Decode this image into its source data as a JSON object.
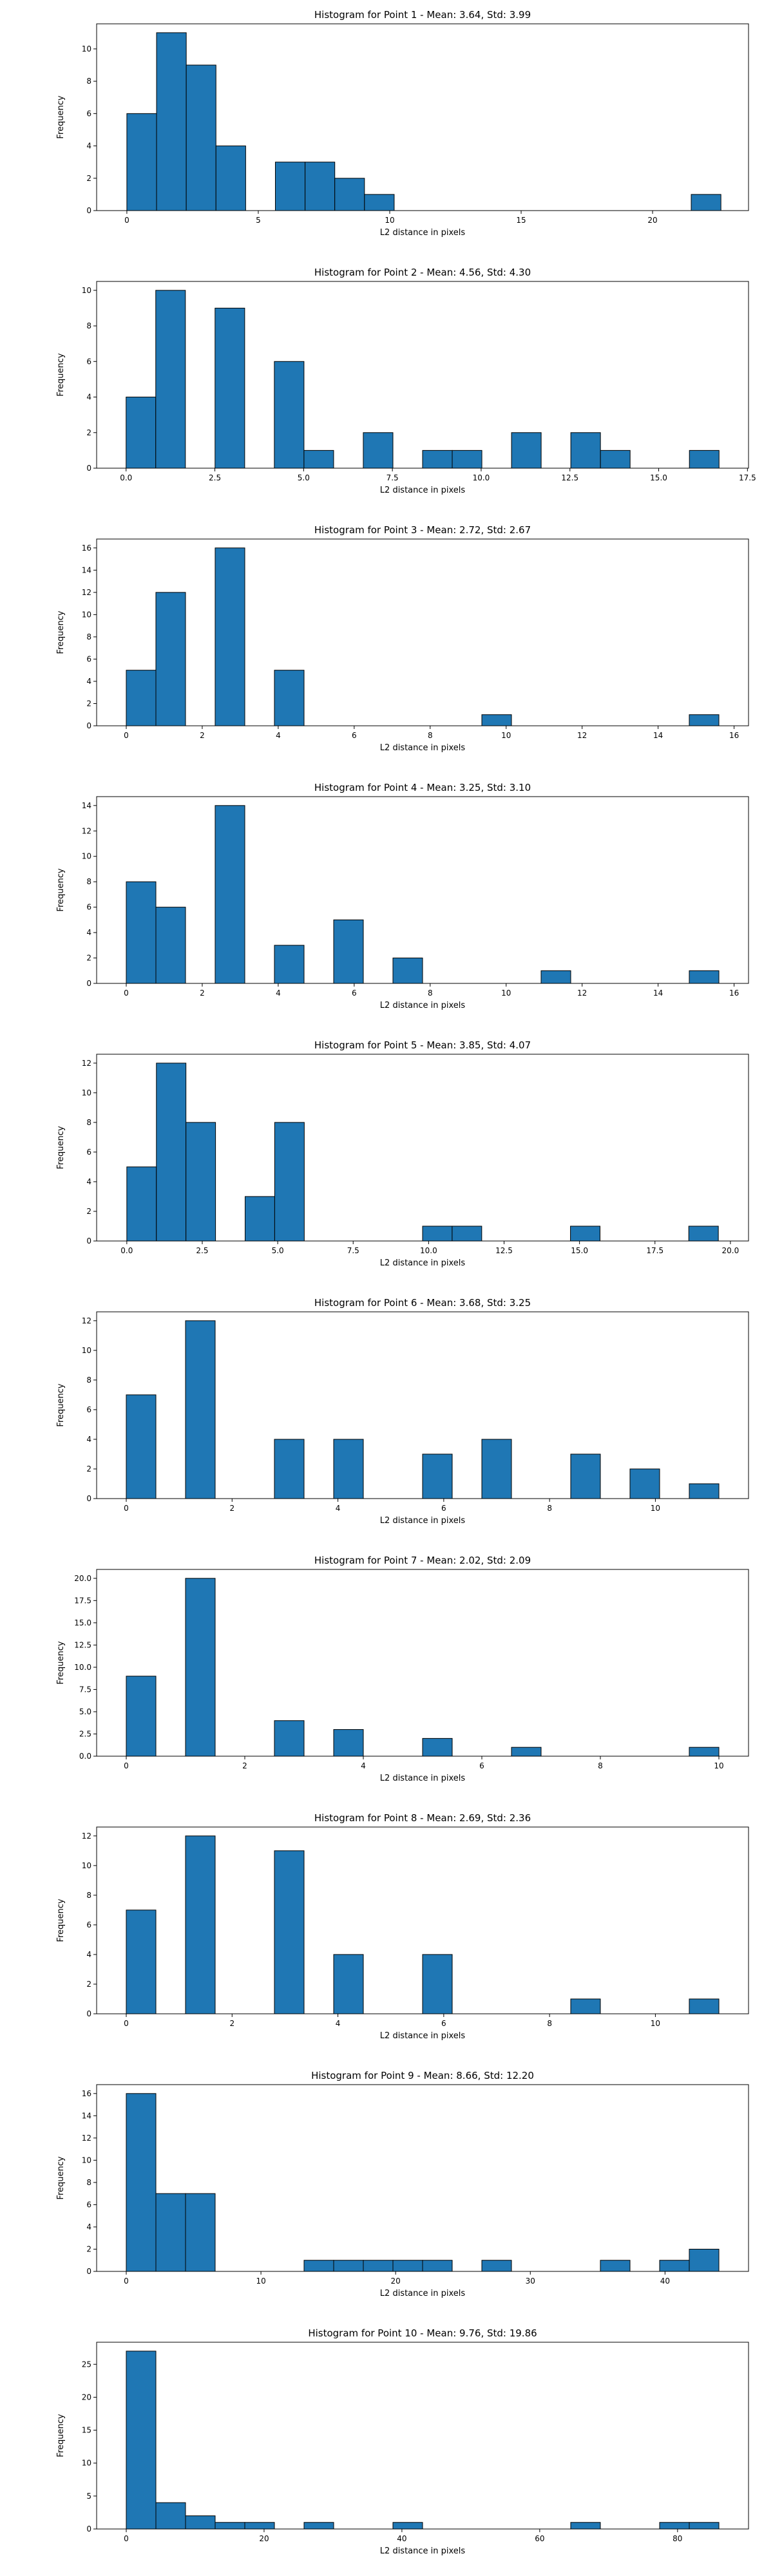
{
  "chart_data": [
    {
      "type": "bar",
      "title": "Histogram for Point 1 - Mean: 3.64, Std: 3.99",
      "xlabel": "L2 distance in pixels",
      "ylabel": "Frequency",
      "xlim": [
        -1.15,
        23.65
      ],
      "ylim": [
        0,
        11.55
      ],
      "xticks": [
        0,
        5,
        10,
        15,
        20
      ],
      "xtick_labels": [
        "0",
        "5",
        "10",
        "15",
        "20"
      ],
      "yticks": [
        0,
        2,
        4,
        6,
        8,
        10
      ],
      "bin_edges": [
        0.0,
        1.13,
        2.26,
        3.39,
        4.52,
        5.65,
        6.78,
        7.91,
        9.04,
        10.17,
        11.3,
        12.43,
        13.56,
        14.69,
        15.82,
        16.95,
        18.08,
        19.21,
        20.34,
        21.47,
        22.6
      ],
      "values": [
        6,
        11,
        9,
        4,
        0,
        3,
        3,
        2,
        1,
        0,
        0,
        0,
        0,
        0,
        0,
        0,
        0,
        0,
        0,
        1
      ]
    },
    {
      "type": "bar",
      "title": "Histogram for Point 2 - Mean: 4.56, Std: 4.30",
      "xlabel": "L2 distance in pixels",
      "ylabel": "Frequency",
      "xlim": [
        -0.83,
        17.53
      ],
      "ylim": [
        0,
        10.5
      ],
      "xticks": [
        0,
        2.5,
        5,
        7.5,
        10,
        12.5,
        15,
        17.5
      ],
      "xtick_labels": [
        "0.0",
        "2.5",
        "5.0",
        "7.5",
        "10.0",
        "12.5",
        "15.0",
        "17.5"
      ],
      "yticks": [
        0,
        2,
        4,
        6,
        8,
        10
      ],
      "bin_edges": [
        0.0,
        0.835,
        1.67,
        2.505,
        3.34,
        4.175,
        5.01,
        5.845,
        6.68,
        7.515,
        8.35,
        9.185,
        10.02,
        10.855,
        11.69,
        12.525,
        13.36,
        14.195,
        15.03,
        15.865,
        16.7
      ],
      "values": [
        4,
        10,
        0,
        9,
        0,
        6,
        1,
        0,
        2,
        0,
        1,
        1,
        0,
        2,
        0,
        2,
        1,
        0,
        0,
        1
      ]
    },
    {
      "type": "bar",
      "title": "Histogram for Point 3 - Mean: 2.72, Std: 2.67",
      "xlabel": "L2 distance in pixels",
      "ylabel": "Frequency",
      "xlim": [
        -0.78,
        16.38
      ],
      "ylim": [
        0,
        16.8
      ],
      "xticks": [
        0,
        2,
        4,
        6,
        8,
        10,
        12,
        14,
        16
      ],
      "xtick_labels": [
        "0",
        "2",
        "4",
        "6",
        "8",
        "10",
        "12",
        "14",
        "16"
      ],
      "yticks": [
        0,
        2,
        4,
        6,
        8,
        10,
        12,
        14,
        16
      ],
      "bin_edges": [
        0.0,
        0.78,
        1.56,
        2.34,
        3.12,
        3.9,
        4.68,
        5.46,
        6.24,
        7.02,
        7.8,
        8.58,
        9.36,
        10.14,
        10.92,
        11.7,
        12.48,
        13.26,
        14.04,
        14.82,
        15.6
      ],
      "values": [
        5,
        12,
        0,
        16,
        0,
        5,
        0,
        0,
        0,
        0,
        0,
        0,
        1,
        0,
        0,
        0,
        0,
        0,
        0,
        1
      ]
    },
    {
      "type": "bar",
      "title": "Histogram for Point 4 - Mean: 3.25, Std: 3.10",
      "xlabel": "L2 distance in pixels",
      "ylabel": "Frequency",
      "xlim": [
        -0.78,
        16.38
      ],
      "ylim": [
        0,
        14.7
      ],
      "xticks": [
        0,
        2,
        4,
        6,
        8,
        10,
        12,
        14,
        16
      ],
      "xtick_labels": [
        "0",
        "2",
        "4",
        "6",
        "8",
        "10",
        "12",
        "14",
        "16"
      ],
      "yticks": [
        0,
        2,
        4,
        6,
        8,
        10,
        12,
        14
      ],
      "bin_edges": [
        0.0,
        0.78,
        1.56,
        2.34,
        3.12,
        3.9,
        4.68,
        5.46,
        6.24,
        7.02,
        7.8,
        8.58,
        9.36,
        10.14,
        10.92,
        11.7,
        12.48,
        13.26,
        14.04,
        14.82,
        15.6
      ],
      "values": [
        8,
        6,
        0,
        14,
        0,
        3,
        0,
        5,
        0,
        2,
        0,
        0,
        0,
        0,
        1,
        0,
        0,
        0,
        0,
        1
      ]
    },
    {
      "type": "bar",
      "title": "Histogram for Point 5 - Mean: 3.85, Std: 4.07",
      "xlabel": "L2 distance in pixels",
      "ylabel": "Frequency",
      "xlim": [
        -1.0,
        20.6
      ],
      "ylim": [
        0,
        12.6
      ],
      "xticks": [
        0,
        2.5,
        5,
        7.5,
        10,
        12.5,
        15,
        17.5,
        20
      ],
      "xtick_labels": [
        "0.0",
        "2.5",
        "5.0",
        "7.5",
        "10.0",
        "12.5",
        "15.0",
        "17.5",
        "20.0"
      ],
      "yticks": [
        0,
        2,
        4,
        6,
        8,
        10,
        12
      ],
      "bin_edges": [
        0.0,
        0.98,
        1.96,
        2.94,
        3.92,
        4.9,
        5.88,
        6.86,
        7.84,
        8.82,
        9.8,
        10.78,
        11.76,
        12.74,
        13.72,
        14.7,
        15.68,
        16.66,
        17.64,
        18.62,
        19.6
      ],
      "values": [
        5,
        12,
        8,
        0,
        3,
        8,
        0,
        0,
        0,
        0,
        1,
        1,
        0,
        0,
        0,
        1,
        0,
        0,
        0,
        1
      ]
    },
    {
      "type": "bar",
      "title": "Histogram for Point 6 - Mean: 3.68, Std: 3.25",
      "xlabel": "L2 distance in pixels",
      "ylabel": "Frequency",
      "xlim": [
        -0.56,
        11.76
      ],
      "ylim": [
        0,
        12.6
      ],
      "xticks": [
        0,
        2,
        4,
        6,
        8,
        10
      ],
      "xtick_labels": [
        "0",
        "2",
        "4",
        "6",
        "8",
        "10"
      ],
      "yticks": [
        0,
        2,
        4,
        6,
        8,
        10,
        12
      ],
      "bin_edges": [
        0.0,
        0.56,
        1.12,
        1.68,
        2.24,
        2.8,
        3.36,
        3.92,
        4.48,
        5.04,
        5.6,
        6.16,
        6.72,
        7.28,
        7.84,
        8.4,
        8.96,
        9.52,
        10.08,
        10.64,
        11.2
      ],
      "values": [
        7,
        0,
        12,
        0,
        0,
        4,
        0,
        4,
        0,
        0,
        3,
        0,
        4,
        0,
        0,
        3,
        0,
        2,
        0,
        1
      ]
    },
    {
      "type": "bar",
      "title": "Histogram for Point 7 - Mean: 2.02, Std: 2.09",
      "xlabel": "L2 distance in pixels",
      "ylabel": "Frequency",
      "xlim": [
        -0.5,
        10.5
      ],
      "ylim": [
        0,
        21.0
      ],
      "xticks": [
        0,
        2,
        4,
        6,
        8,
        10
      ],
      "xtick_labels": [
        "0",
        "2",
        "4",
        "6",
        "8",
        "10"
      ],
      "yticks": [
        0,
        2.5,
        5,
        7.5,
        10,
        12.5,
        15,
        17.5,
        20
      ],
      "ytick_labels": [
        "0.0",
        "2.5",
        "5.0",
        "7.5",
        "10.0",
        "12.5",
        "15.0",
        "17.5",
        "20.0"
      ],
      "bin_edges": [
        0.0,
        0.5,
        1.0,
        1.5,
        2.0,
        2.5,
        3.0,
        3.5,
        4.0,
        4.5,
        5.0,
        5.5,
        6.0,
        6.5,
        7.0,
        7.5,
        8.0,
        8.5,
        9.0,
        9.5,
        10.0
      ],
      "values": [
        9,
        0,
        20,
        0,
        0,
        4,
        0,
        3,
        0,
        0,
        2,
        0,
        0,
        1,
        0,
        0,
        0,
        0,
        0,
        1
      ]
    },
    {
      "type": "bar",
      "title": "Histogram for Point 8 - Mean: 2.69, Std: 2.36",
      "xlabel": "L2 distance in pixels",
      "ylabel": "Frequency",
      "xlim": [
        -0.56,
        11.76
      ],
      "ylim": [
        0,
        12.6
      ],
      "xticks": [
        0,
        2,
        4,
        6,
        8,
        10
      ],
      "xtick_labels": [
        "0",
        "2",
        "4",
        "6",
        "8",
        "10"
      ],
      "yticks": [
        0,
        2,
        4,
        6,
        8,
        10,
        12
      ],
      "bin_edges": [
        0.0,
        0.56,
        1.12,
        1.68,
        2.24,
        2.8,
        3.36,
        3.92,
        4.48,
        5.04,
        5.6,
        6.16,
        6.72,
        7.28,
        7.84,
        8.4,
        8.96,
        9.52,
        10.08,
        10.64,
        11.2
      ],
      "values": [
        7,
        0,
        12,
        0,
        0,
        11,
        0,
        4,
        0,
        0,
        4,
        0,
        0,
        0,
        0,
        1,
        0,
        0,
        0,
        1
      ]
    },
    {
      "type": "bar",
      "title": "Histogram for Point 9 - Mean: 8.66, Std: 12.20",
      "xlabel": "L2 distance in pixels",
      "ylabel": "Frequency",
      "xlim": [
        -2.2,
        46.2
      ],
      "ylim": [
        0,
        16.8
      ],
      "xticks": [
        0,
        10,
        20,
        30,
        40
      ],
      "xtick_labels": [
        "0",
        "10",
        "20",
        "30",
        "40"
      ],
      "yticks": [
        0,
        2,
        4,
        6,
        8,
        10,
        12,
        14,
        16
      ],
      "bin_edges": [
        0.0,
        2.2,
        4.4,
        6.6,
        8.8,
        11.0,
        13.2,
        15.4,
        17.6,
        19.8,
        22.0,
        24.2,
        26.4,
        28.6,
        30.8,
        33.0,
        35.2,
        37.4,
        39.6,
        41.8,
        44.0
      ],
      "values": [
        16,
        7,
        7,
        0,
        0,
        0,
        1,
        1,
        1,
        1,
        1,
        0,
        1,
        0,
        0,
        0,
        1,
        0,
        1,
        2
      ]
    },
    {
      "type": "bar",
      "title": "Histogram for Point 10 - Mean: 9.76, Std: 19.86",
      "xlabel": "L2 distance in pixels",
      "ylabel": "Frequency",
      "xlim": [
        -4.3,
        90.3
      ],
      "ylim": [
        0,
        28.35
      ],
      "xticks": [
        0,
        20,
        40,
        60,
        80
      ],
      "xtick_labels": [
        "0",
        "20",
        "40",
        "60",
        "80"
      ],
      "yticks": [
        0,
        5,
        10,
        15,
        20,
        25
      ],
      "bin_edges": [
        0.0,
        4.3,
        8.6,
        12.9,
        17.2,
        21.5,
        25.8,
        30.1,
        34.4,
        38.7,
        43.0,
        47.3,
        51.6,
        55.9,
        60.2,
        64.5,
        68.8,
        73.1,
        77.4,
        81.7,
        86.0
      ],
      "values": [
        27,
        4,
        2,
        1,
        1,
        0,
        1,
        0,
        0,
        1,
        0,
        0,
        0,
        0,
        0,
        1,
        0,
        0,
        1,
        1
      ]
    }
  ]
}
